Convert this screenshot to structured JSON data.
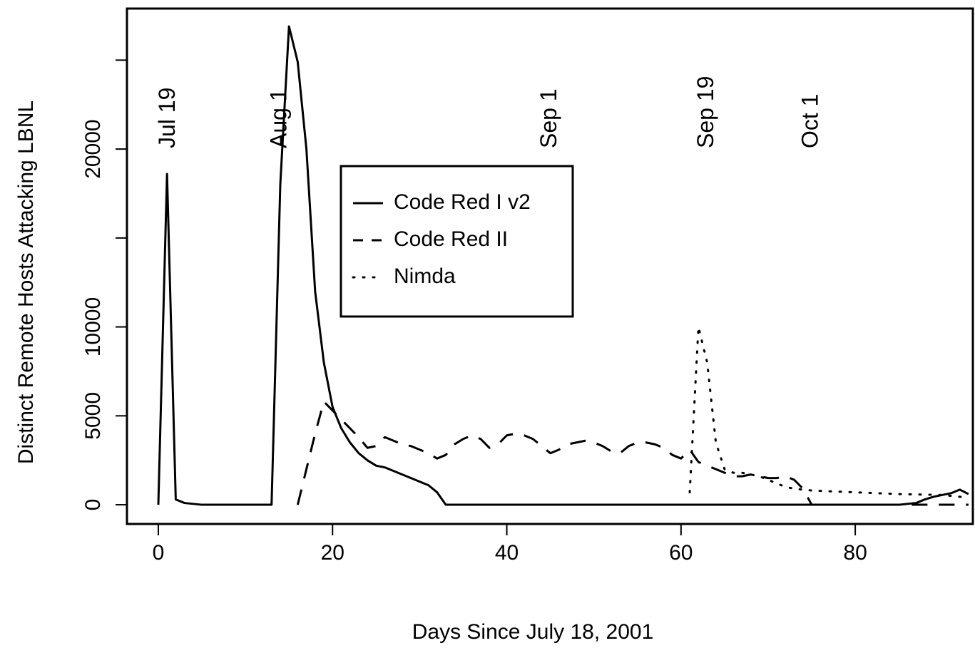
{
  "chart_data": {
    "type": "line",
    "xlabel": "Days Since July 18, 2001",
    "ylabel": "Distinct Remote Hosts Attacking LBNL",
    "x": [
      0,
      1,
      2,
      3,
      4,
      5,
      6,
      7,
      8,
      9,
      10,
      11,
      12,
      13,
      14,
      15,
      16,
      17,
      18,
      19,
      20,
      21,
      22,
      23,
      24,
      25,
      26,
      27,
      28,
      29,
      30,
      31,
      32,
      33,
      34,
      35,
      36,
      37,
      38,
      39,
      40,
      41,
      42,
      43,
      44,
      45,
      46,
      47,
      48,
      49,
      50,
      51,
      52,
      53,
      54,
      55,
      56,
      57,
      58,
      59,
      60,
      61,
      62,
      63,
      64,
      65,
      66,
      67,
      68,
      69,
      70,
      71,
      72,
      73,
      74,
      75,
      76,
      77,
      78,
      79,
      80,
      81,
      82,
      83,
      84,
      85,
      86,
      87,
      88,
      89,
      90,
      91,
      92,
      93
    ],
    "series": [
      {
        "name": "Code Red I v2",
        "color": "#000000",
        "dash": "solid",
        "values": [
          0,
          18600,
          300,
          100,
          50,
          0,
          0,
          0,
          0,
          0,
          0,
          0,
          0,
          0,
          18000,
          26900,
          24900,
          20000,
          12000,
          8000,
          5500,
          4300,
          3500,
          2900,
          2500,
          2200,
          2100,
          1900,
          1700,
          1500,
          1300,
          1100,
          700,
          0,
          0,
          0,
          0,
          0,
          0,
          0,
          0,
          0,
          0,
          0,
          0,
          0,
          0,
          0,
          0,
          0,
          0,
          0,
          0,
          0,
          0,
          0,
          0,
          0,
          0,
          0,
          0,
          0,
          0,
          0,
          0,
          0,
          0,
          0,
          0,
          0,
          0,
          0,
          0,
          0,
          0,
          0,
          0,
          0,
          0,
          0,
          0,
          0,
          0,
          0,
          0,
          0,
          50,
          100,
          300,
          450,
          550,
          650,
          850,
          600
        ]
      },
      {
        "name": "Code Red II",
        "color": "#000000",
        "dash": "dashed",
        "values": [
          null,
          null,
          null,
          null,
          null,
          null,
          null,
          null,
          null,
          null,
          null,
          null,
          null,
          null,
          null,
          null,
          0,
          2000,
          4000,
          5800,
          5300,
          4800,
          4300,
          3800,
          3200,
          3300,
          3800,
          3600,
          3400,
          3300,
          3100,
          2900,
          2600,
          2800,
          3400,
          3700,
          3900,
          3700,
          3200,
          3400,
          3900,
          4000,
          3900,
          3700,
          3300,
          2900,
          3100,
          3400,
          3500,
          3600,
          3500,
          3300,
          3000,
          2900,
          3300,
          3500,
          3500,
          3400,
          3200,
          2800,
          2600,
          3100,
          2400,
          2200,
          2000,
          1800,
          1600,
          1600,
          1700,
          1600,
          1500,
          1500,
          1600,
          1400,
          900,
          0,
          0,
          0,
          0,
          0,
          0,
          0,
          0,
          0,
          0,
          0,
          0,
          0,
          0,
          0,
          0,
          0,
          0,
          0
        ]
      },
      {
        "name": "Nimda",
        "color": "#000000",
        "dash": "dotted",
        "values": [
          null,
          null,
          null,
          null,
          null,
          null,
          null,
          null,
          null,
          null,
          null,
          null,
          null,
          null,
          null,
          null,
          null,
          null,
          null,
          null,
          null,
          null,
          null,
          null,
          null,
          null,
          null,
          null,
          null,
          null,
          null,
          null,
          null,
          null,
          null,
          null,
          null,
          null,
          null,
          null,
          null,
          null,
          null,
          null,
          null,
          null,
          null,
          null,
          null,
          null,
          null,
          null,
          null,
          null,
          null,
          null,
          null,
          null,
          null,
          null,
          null,
          700,
          10000,
          8000,
          3500,
          2000,
          1800,
          1800,
          1700,
          1600,
          1400,
          1200,
          1000,
          900,
          850,
          800,
          780,
          760,
          740,
          720,
          700,
          680,
          660,
          640,
          620,
          600,
          590,
          580,
          570,
          560,
          550,
          500,
          450,
          400
        ]
      }
    ],
    "annotations": [
      {
        "x": 1.2,
        "text": "Jul 19"
      },
      {
        "x": 14,
        "text": "Aug 1"
      },
      {
        "x": 45,
        "text": "Sep 1"
      },
      {
        "x": 63,
        "text": "Sep 19"
      },
      {
        "x": 75,
        "text": "Oct 1"
      }
    ],
    "xlim": [
      -3.6,
      93.5
    ],
    "xticks": [
      0,
      20,
      40,
      60,
      80
    ],
    "ylim": [
      -1080,
      27900
    ],
    "yticks": [
      0,
      5000,
      10000,
      20000
    ],
    "y_unlabeled_ticks": [
      15000,
      25000
    ],
    "grid": false,
    "legend": "upper center"
  }
}
